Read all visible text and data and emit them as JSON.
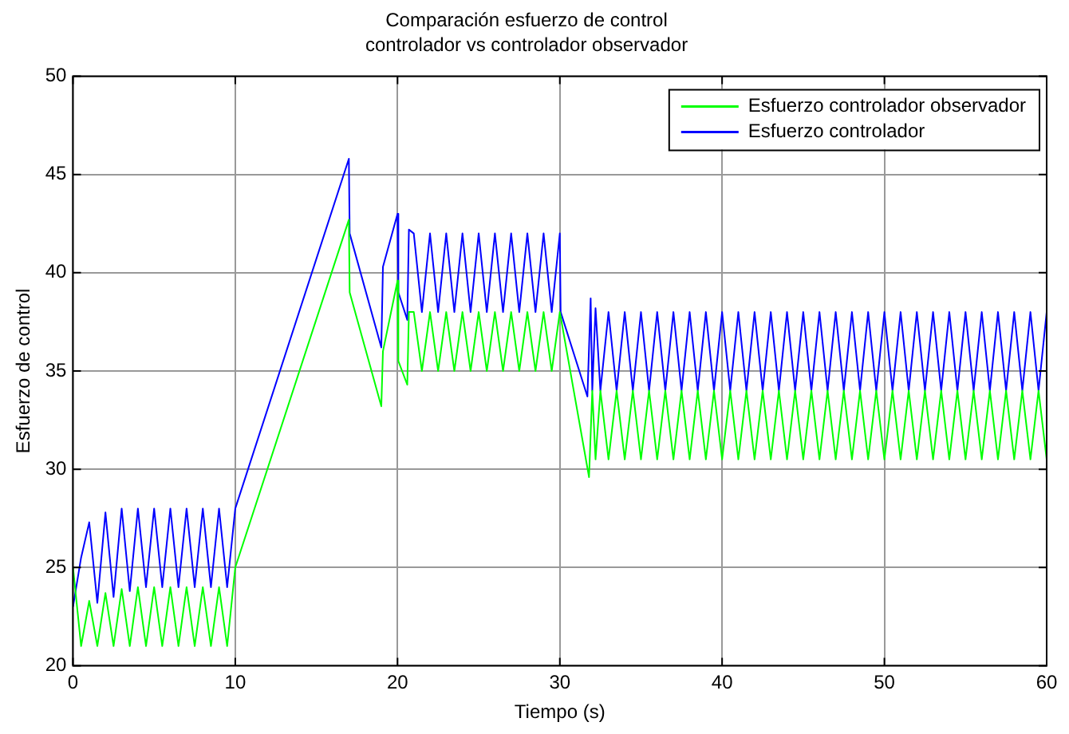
{
  "chart_data": {
    "type": "line",
    "title": "Comparación esfuerzo de control",
    "subtitle": "controlador vs controlador observador",
    "xlabel": "Tiempo (s)",
    "ylabel": "Esfuerzo de control",
    "xlim": [
      0,
      60
    ],
    "xticks": [
      0,
      10,
      20,
      30,
      40,
      50,
      60
    ],
    "ylim": [
      20,
      50
    ],
    "yticks": [
      20,
      25,
      30,
      35,
      40,
      45,
      50
    ],
    "grid": true,
    "legend": "top right",
    "series": [
      {
        "name": "Esfuerzo controlador observador",
        "color": "#00ff00",
        "x": [
          0,
          0.5,
          1,
          1.5,
          2,
          2.5,
          3,
          3.5,
          4,
          4.5,
          5,
          5.5,
          6,
          6.5,
          7,
          7.5,
          8,
          8.5,
          9,
          9.5,
          10,
          17,
          17.05,
          19,
          19.1,
          20,
          20.05,
          20.6,
          20.7,
          21,
          21.5,
          22,
          22.5,
          23,
          23.5,
          24,
          24.5,
          25,
          25.5,
          26,
          26.5,
          27,
          27.5,
          28,
          28.5,
          29,
          29.5,
          30,
          31.8,
          32,
          32.2,
          32.5,
          33,
          33.5,
          34,
          34.5,
          35,
          35.5,
          36,
          36.5,
          37,
          37.5,
          38,
          38.5,
          39,
          39.5,
          40,
          40.5,
          41,
          41.5,
          42,
          42.5,
          43,
          43.5,
          44,
          44.5,
          45,
          45.5,
          46,
          46.5,
          47,
          47.5,
          48,
          48.5,
          49,
          49.5,
          50,
          50.5,
          51,
          51.5,
          52,
          52.5,
          53,
          53.5,
          54,
          54.5,
          55,
          55.5,
          56,
          56.5,
          57,
          57.5,
          58,
          58.5,
          59,
          59.5,
          60
        ],
        "values": [
          25,
          21,
          23.3,
          21,
          23.7,
          21,
          23.9,
          21,
          24,
          21,
          24,
          21,
          24,
          21,
          24,
          21,
          24,
          21,
          24,
          21,
          25,
          42.7,
          39,
          33.2,
          36,
          39.6,
          35.5,
          34.3,
          38,
          38,
          35,
          38,
          35,
          38,
          35,
          38,
          35,
          38,
          35,
          38,
          35,
          38,
          35,
          38,
          35,
          38,
          35,
          38,
          29.6,
          34,
          30.5,
          34,
          30.5,
          34,
          30.5,
          34,
          30.5,
          34,
          30.5,
          34,
          30.5,
          34,
          30.5,
          34,
          30.5,
          34,
          30.5,
          34,
          30.5,
          34,
          30.5,
          34,
          30.5,
          34,
          30.5,
          34,
          30.5,
          34,
          30.5,
          34,
          30.5,
          34,
          30.5,
          34,
          30.5,
          34,
          30.5,
          34,
          30.5,
          34,
          30.5,
          34,
          30.5,
          34,
          30.5,
          34,
          30.5,
          34,
          30.5,
          34,
          30.5,
          34,
          30.5,
          34,
          30.5,
          34,
          30.5
        ]
      },
      {
        "name": "Esfuerzo controlador",
        "color": "#0000ff",
        "x": [
          0,
          0.5,
          1,
          1.5,
          2,
          2.5,
          3,
          3.5,
          4,
          4.5,
          5,
          5.5,
          6,
          6.5,
          7,
          7.5,
          8,
          8.5,
          9,
          9.5,
          10,
          17,
          17.05,
          19,
          19.1,
          20,
          20.05,
          20.6,
          20.7,
          21,
          21.5,
          22,
          22.5,
          23,
          23.5,
          24,
          24.5,
          25,
          25.5,
          26,
          26.5,
          27,
          27.5,
          28,
          28.5,
          29,
          29.5,
          30,
          30.05,
          31.7,
          31.9,
          32,
          32.2,
          32.5,
          33,
          33.5,
          34,
          34.5,
          35,
          35.5,
          36,
          36.5,
          37,
          37.5,
          38,
          38.5,
          39,
          39.5,
          40,
          40.5,
          41,
          41.5,
          42,
          42.5,
          43,
          43.5,
          44,
          44.5,
          45,
          45.5,
          46,
          46.5,
          47,
          47.5,
          48,
          48.5,
          49,
          49.5,
          50,
          50.5,
          51,
          51.5,
          52,
          52.5,
          53,
          53.5,
          54,
          54.5,
          55,
          55.5,
          56,
          56.5,
          57,
          57.5,
          58,
          58.5,
          59,
          59.5,
          60
        ],
        "values": [
          23,
          25.5,
          27.3,
          23.2,
          27.8,
          23.5,
          28,
          23.8,
          28,
          24,
          28,
          24,
          28,
          24,
          28,
          24,
          28,
          24,
          28,
          24,
          28,
          45.8,
          42,
          36.2,
          40.3,
          43,
          39,
          37.6,
          42.2,
          42,
          38,
          42,
          38,
          42,
          38,
          42,
          38,
          42,
          38,
          42,
          38,
          42,
          38,
          42,
          38,
          42,
          38,
          42,
          38,
          33.7,
          38.7,
          34,
          38.2,
          34,
          38,
          34,
          38,
          34,
          38,
          34,
          38,
          34,
          38,
          34,
          38,
          34,
          38,
          34,
          38,
          34,
          38,
          34,
          38,
          34,
          38,
          34,
          38,
          34,
          38,
          34,
          38,
          34,
          38,
          34,
          38,
          34,
          38,
          34,
          38,
          34,
          38,
          34,
          38,
          34,
          38,
          34,
          38,
          34,
          38,
          34,
          38,
          34,
          38,
          34,
          38,
          34,
          38,
          34,
          38
        ]
      }
    ]
  }
}
